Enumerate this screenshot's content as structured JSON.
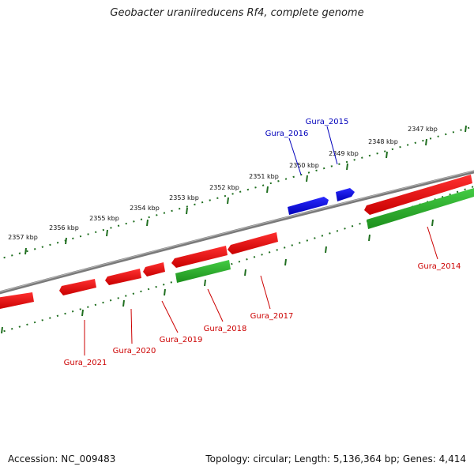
{
  "title": "Geobacter uraniireducens Rf4, complete genome",
  "footer": {
    "accession": "Accession: NC_009483",
    "summary": "Topology: circular; Length: 5,136,364 bp; Genes: 4,414"
  },
  "colors": {
    "reverse_gene": "#ee0000",
    "forward_gene": "#0000dd",
    "rna_gene": "#22aa22",
    "backbone": "#808080",
    "ruler": "#1f6e1f",
    "forward_label": "#0000bb",
    "reverse_label": "#cc0000"
  },
  "ruler_labels": [
    "2347 kbp",
    "2348 kbp",
    "2349 kbp",
    "2350 kbp",
    "2351 kbp",
    "2352 kbp",
    "2353 kbp",
    "2354 kbp",
    "2355 kbp",
    "2356 kbp",
    "2357 kbp"
  ],
  "genes": [
    {
      "name": "Gura_2015",
      "strand": "forward"
    },
    {
      "name": "Gura_2016",
      "strand": "forward"
    },
    {
      "name": "Gura_2014",
      "strand": "reverse"
    },
    {
      "name": "Gura_2017",
      "strand": "reverse"
    },
    {
      "name": "Gura_2018",
      "strand": "reverse"
    },
    {
      "name": "Gura_2019",
      "strand": "reverse"
    },
    {
      "name": "Gura_2020",
      "strand": "reverse"
    },
    {
      "name": "Gura_2021",
      "strand": "reverse"
    }
  ]
}
